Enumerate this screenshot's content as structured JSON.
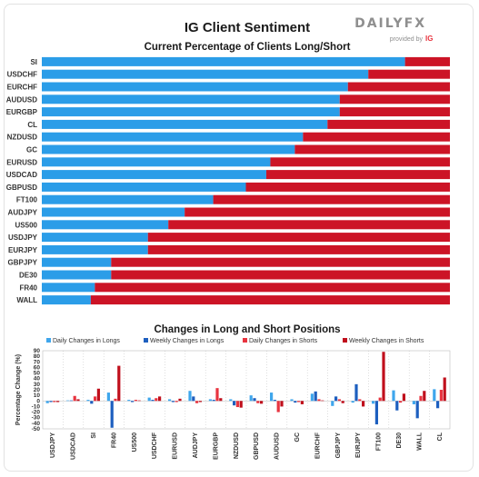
{
  "header": {
    "title": "IG Client Sentiment",
    "brand_logo": "DAILYFX",
    "brand_sub": "provided by",
    "brand_ig": "IG"
  },
  "colors": {
    "long": "#2b9de8",
    "short": "#cc1426",
    "daily_long": "#3fa6ec",
    "weekly_long": "#1d5fbf",
    "daily_short": "#e8343f",
    "weekly_short": "#c00f1c",
    "logo_red": "#e8343f",
    "logo_gray": "#9a9a9a"
  },
  "chart_data": [
    {
      "type": "bar",
      "orientation": "horizontal",
      "stacked": true,
      "title": "Current Percentage of Clients Long/Short",
      "categories": [
        "SI",
        "USDCHF",
        "EURCHF",
        "AUDUSD",
        "EURGBP",
        "CL",
        "NZDUSD",
        "GC",
        "EURUSD",
        "USDCAD",
        "GBPUSD",
        "FT100",
        "AUDJPY",
        "US500",
        "USDJPY",
        "EURJPY",
        "GBPJPY",
        "DE30",
        "FR40",
        "WALL"
      ],
      "series": [
        {
          "values": [
            89,
            80,
            75,
            73,
            73,
            70,
            64,
            62,
            56,
            55,
            50,
            42,
            35,
            31,
            26,
            26,
            17,
            17,
            13,
            12
          ]
        },
        {
          "values": [
            11,
            20,
            25,
            27,
            27,
            30,
            36,
            38,
            44,
            45,
            50,
            58,
            65,
            69,
            74,
            74,
            83,
            83,
            87,
            88
          ]
        }
      ],
      "xlim": [
        0,
        100
      ],
      "legend": "none"
    },
    {
      "type": "bar",
      "title": "Changes in Long and Short Positions",
      "ylabel": "Percentage Change (%)",
      "ylim": [
        -50,
        90
      ],
      "yticks": [
        90,
        80,
        70,
        60,
        50,
        40,
        30,
        20,
        10,
        0,
        -10,
        -20,
        -30,
        -40,
        -50
      ],
      "legend": "top",
      "categories": [
        "USDJPY",
        "USDCAD",
        "SI",
        "FR40",
        "US500",
        "USDCHF",
        "EURUSD",
        "AUDJPY",
        "EURGBP",
        "NZDUSD",
        "GBPUSD",
        "AUDUSD",
        "GC",
        "EURCHF",
        "GBPJPY",
        "EURJPY",
        "FT100",
        "DE30",
        "WALL",
        "CL"
      ],
      "series": [
        {
          "name": "Daily Changes in Longs",
          "values": [
            -4,
            1,
            2,
            15,
            2,
            6,
            3,
            18,
            3,
            3,
            10,
            15,
            3,
            13,
            -9,
            -3,
            -5,
            19,
            -6,
            21
          ]
        },
        {
          "name": "Weekly Changes in Longs",
          "values": [
            -2,
            1,
            -5,
            -48,
            -2,
            2,
            -2,
            8,
            2,
            -8,
            5,
            2,
            -3,
            17,
            8,
            30,
            -42,
            -17,
            -31,
            -13
          ]
        },
        {
          "name": "Daily Changes in Shorts",
          "values": [
            -2,
            9,
            8,
            4,
            2,
            5,
            -2,
            -4,
            23,
            -11,
            -4,
            -20,
            -2,
            3,
            3,
            3,
            6,
            -3,
            9,
            20
          ]
        },
        {
          "name": "Weekly Changes in Shorts",
          "values": [
            -2,
            3,
            22,
            63,
            1,
            8,
            4,
            -2,
            5,
            -12,
            -5,
            -10,
            -6,
            1,
            -4,
            -10,
            88,
            13,
            18,
            42
          ]
        }
      ]
    }
  ]
}
